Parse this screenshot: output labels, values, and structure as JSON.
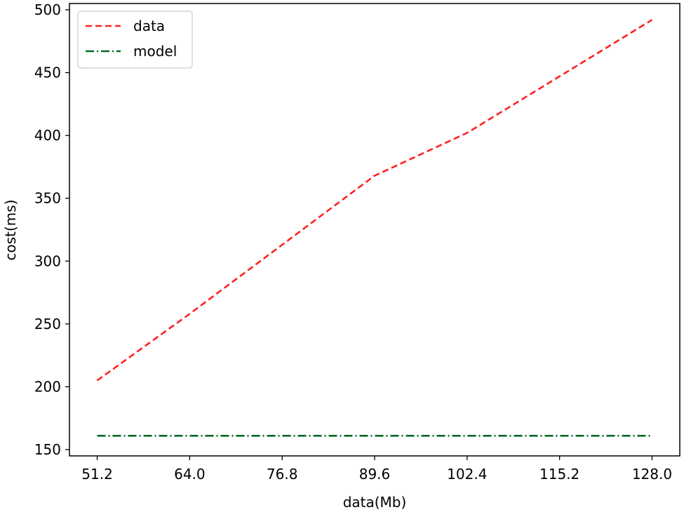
{
  "chart_data": {
    "type": "line",
    "title": "",
    "xlabel": "data(Mb)",
    "ylabel": "cost(ms)",
    "x": [
      51.2,
      64.0,
      76.8,
      89.6,
      102.4,
      115.2,
      128.0
    ],
    "xticks": [
      "51.2",
      "64.0",
      "76.8",
      "89.6",
      "102.4",
      "115.2",
      "128.0"
    ],
    "yticks": [
      150,
      200,
      250,
      300,
      350,
      400,
      450,
      500
    ],
    "xlim": [
      47.36,
      131.84
    ],
    "ylim": [
      145,
      505
    ],
    "grid": false,
    "legend_position": "upper-left",
    "series": [
      {
        "name": "data",
        "color": "#ff2020",
        "line_style": "dashed",
        "values": [
          205,
          258,
          313,
          368,
          402,
          447,
          492
        ]
      },
      {
        "name": "model",
        "color": "#006a1f",
        "line_style": "dashdot",
        "values": [
          161,
          161,
          161,
          161,
          161,
          161,
          161
        ]
      }
    ]
  }
}
